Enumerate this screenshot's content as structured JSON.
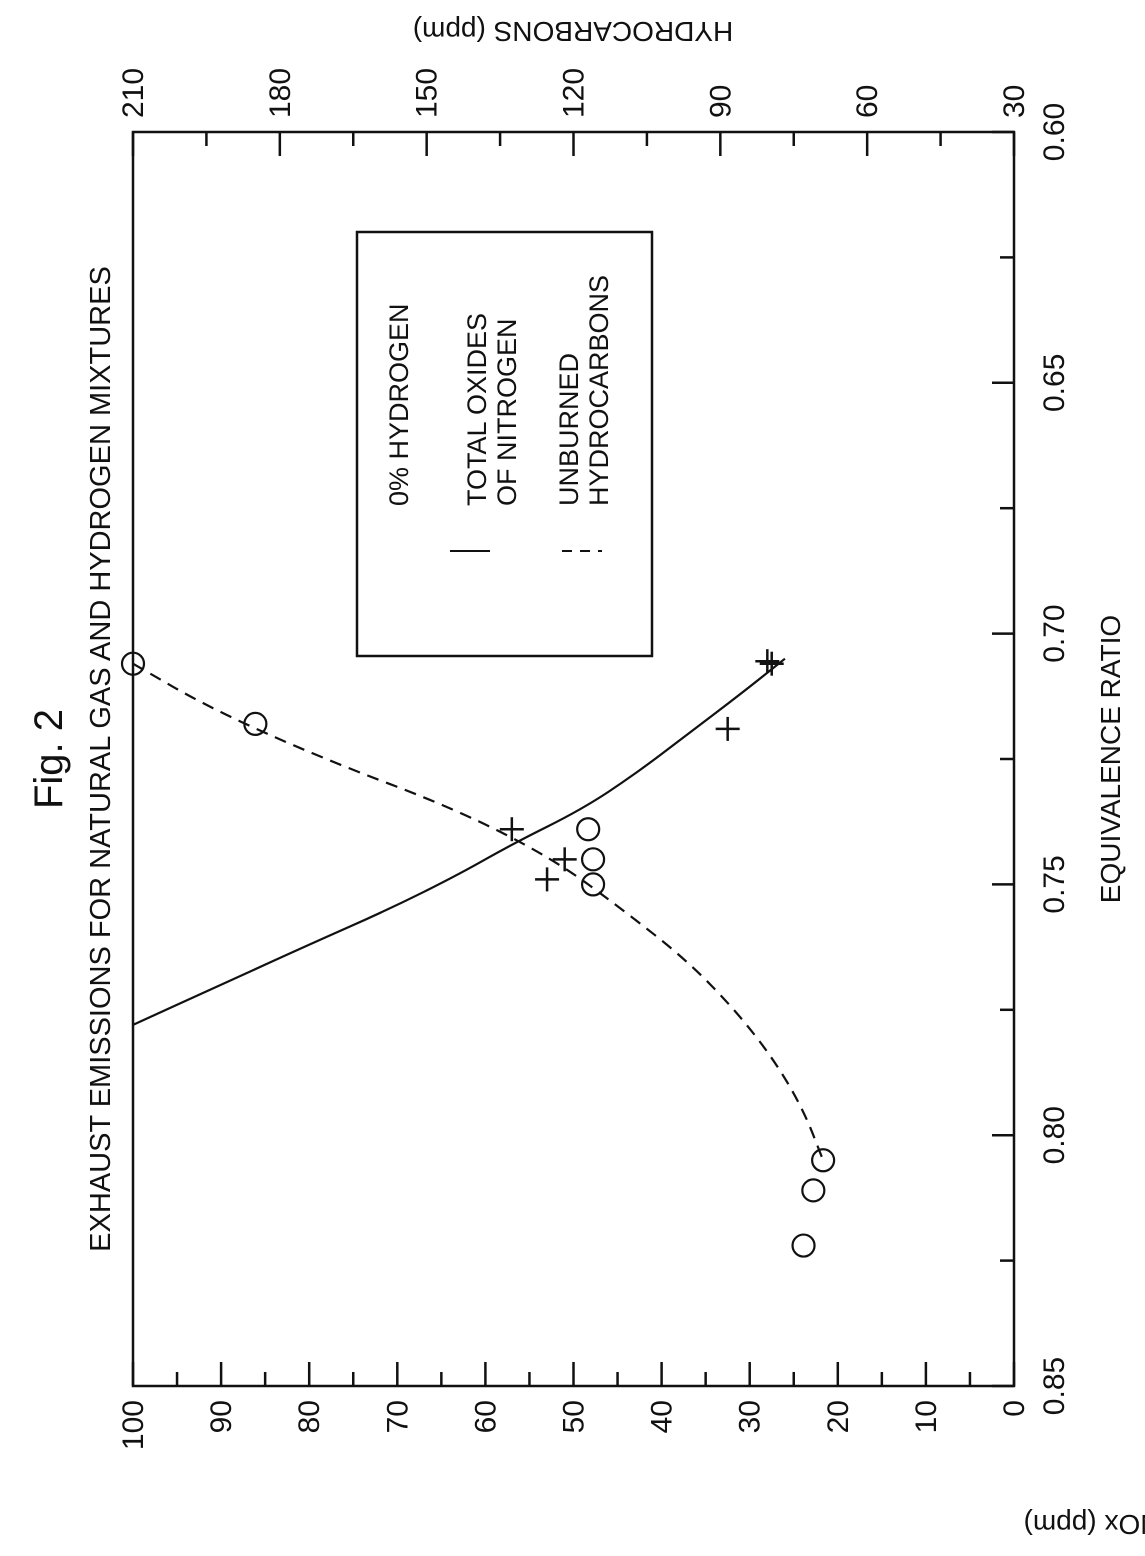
{
  "chart_data": {
    "type": "scatter",
    "figure_label": "Fig. 2",
    "title": "EXHAUST EMISSIONS FOR NATURAL GAS AND HYDROGEN MIXTURES",
    "xlabel": "EQUIVALENCE RATIO",
    "ylabel_left": "NOx (ppm)",
    "ylabel_right": "HYDROCARBONS (ppm)",
    "xlim": [
      0.85,
      0.6
    ],
    "ylim_left": [
      0,
      100
    ],
    "ylim_right": [
      30,
      210
    ],
    "x_ticks": [
      "0.85",
      "0.80",
      "0.75",
      "0.70",
      "0.65",
      "0.60"
    ],
    "y_left_ticks": [
      "0",
      "10",
      "20",
      "30",
      "40",
      "50",
      "60",
      "70",
      "80",
      "90",
      "100"
    ],
    "y_right_ticks": [
      "30",
      "60",
      "90",
      "120",
      "150",
      "180",
      "210"
    ],
    "legend": {
      "title": "0% HYDROGEN",
      "entries": [
        {
          "line": [
            "TOTAL OXIDES",
            "OF NITROGEN"
          ],
          "style": "solid"
        },
        {
          "line": [
            "UNBURNED",
            "HYDROCARBONS"
          ],
          "style": "dashed"
        }
      ]
    },
    "series": [
      {
        "marker": "plus",
        "axis": "left",
        "style": "solid",
        "points": [
          [
            0.706,
            27.5
          ],
          [
            0.7055,
            28
          ],
          [
            0.719,
            32.5
          ],
          [
            0.739,
            57
          ],
          [
            0.745,
            51
          ],
          [
            0.749,
            53
          ]
        ],
        "fit": [
          [
            0.778,
            100
          ],
          [
            0.77,
            90
          ],
          [
            0.762,
            80
          ],
          [
            0.755,
            71
          ],
          [
            0.748,
            63
          ],
          [
            0.742,
            57
          ],
          [
            0.735,
            49
          ],
          [
            0.728,
            43
          ],
          [
            0.72,
            37
          ],
          [
            0.712,
            31
          ],
          [
            0.705,
            26
          ]
        ]
      },
      {
        "marker": "circle",
        "axis": "right",
        "style": "dashed",
        "points": [
          [
            0.706,
            210
          ],
          [
            0.718,
            185
          ],
          [
            0.739,
            117
          ],
          [
            0.745,
            116
          ],
          [
            0.75,
            116
          ],
          [
            0.811,
            71
          ],
          [
            0.822,
            73
          ],
          [
            0.805,
            69
          ]
        ],
        "fit": [
          [
            0.706,
            210
          ],
          [
            0.715,
            194
          ],
          [
            0.725,
            171
          ],
          [
            0.735,
            144
          ],
          [
            0.745,
            124
          ],
          [
            0.755,
            110
          ],
          [
            0.765,
            97
          ],
          [
            0.775,
            87
          ],
          [
            0.785,
            79
          ],
          [
            0.795,
            73
          ],
          [
            0.805,
            69
          ]
        ]
      }
    ]
  }
}
